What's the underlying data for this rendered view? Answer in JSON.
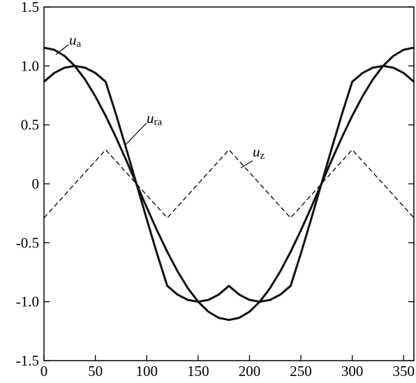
{
  "chart_data": {
    "type": "line",
    "title": "",
    "xlabel": "",
    "ylabel": "",
    "xlim": [
      0,
      360
    ],
    "ylim": [
      -1.5,
      1.5
    ],
    "x_ticks": [
      0,
      50,
      100,
      150,
      200,
      250,
      300,
      350
    ],
    "x_tick_labels": [
      "0",
      "50",
      "100",
      "150",
      "200",
      "250",
      "300",
      "350"
    ],
    "y_ticks": [
      1.5,
      1.0,
      0.5,
      0,
      -0.5,
      -1.0,
      -1.5
    ],
    "y_tick_labels": [
      "1.5",
      "1.0",
      "0.5",
      "0",
      "-0.5",
      "-1.0",
      "-1.5"
    ],
    "grid": false,
    "series": [
      {
        "name": "u_a",
        "label_main": "u",
        "label_sub": "a",
        "style": "solid-thick",
        "x": [
          0,
          10,
          20,
          30,
          40,
          50,
          60,
          70,
          80,
          90,
          100,
          110,
          120,
          130,
          140,
          150,
          160,
          170,
          180,
          190,
          200,
          210,
          220,
          230,
          240,
          250,
          260,
          270,
          280,
          290,
          300,
          310,
          320,
          330,
          340,
          350,
          360
        ],
        "values": [
          1.155,
          1.137,
          1.085,
          1.0,
          0.885,
          0.742,
          0.577,
          0.395,
          0.201,
          0.0,
          -0.201,
          -0.395,
          -0.577,
          -0.742,
          -0.885,
          -1.0,
          -1.085,
          -1.137,
          -1.155,
          -1.137,
          -1.085,
          -1.0,
          -0.885,
          -0.742,
          -0.577,
          -0.395,
          -0.201,
          0.0,
          0.201,
          0.395,
          0.577,
          0.742,
          0.885,
          1.0,
          1.085,
          1.137,
          1.155
        ]
      },
      {
        "name": "u_ra",
        "label_main": "u",
        "label_sub": "ra",
        "style": "solid-thick",
        "x": [
          0,
          10,
          20,
          30,
          40,
          50,
          60,
          70,
          80,
          90,
          100,
          110,
          120,
          130,
          140,
          150,
          160,
          170,
          180,
          190,
          200,
          210,
          220,
          230,
          240,
          250,
          260,
          270,
          280,
          290,
          300,
          310,
          320,
          330,
          340,
          350,
          360
        ],
        "values": [
          0.866,
          0.94,
          0.985,
          1.0,
          0.985,
          0.94,
          0.866,
          0.592,
          0.3,
          0.0,
          -0.3,
          -0.592,
          -0.866,
          -0.94,
          -0.985,
          -1.0,
          -0.985,
          -0.94,
          -0.866,
          -0.94,
          -0.985,
          -1.0,
          -0.985,
          -0.94,
          -0.866,
          -0.592,
          -0.3,
          0.0,
          0.3,
          0.592,
          0.866,
          0.94,
          0.985,
          1.0,
          0.985,
          0.94,
          0.866
        ]
      },
      {
        "name": "u_z",
        "label_main": "u",
        "label_sub": "z",
        "style": "dashed",
        "x": [
          0,
          60,
          120,
          180,
          240,
          300,
          360
        ],
        "values": [
          -0.289,
          0.289,
          -0.289,
          0.289,
          -0.289,
          0.289,
          -0.289
        ]
      }
    ]
  }
}
